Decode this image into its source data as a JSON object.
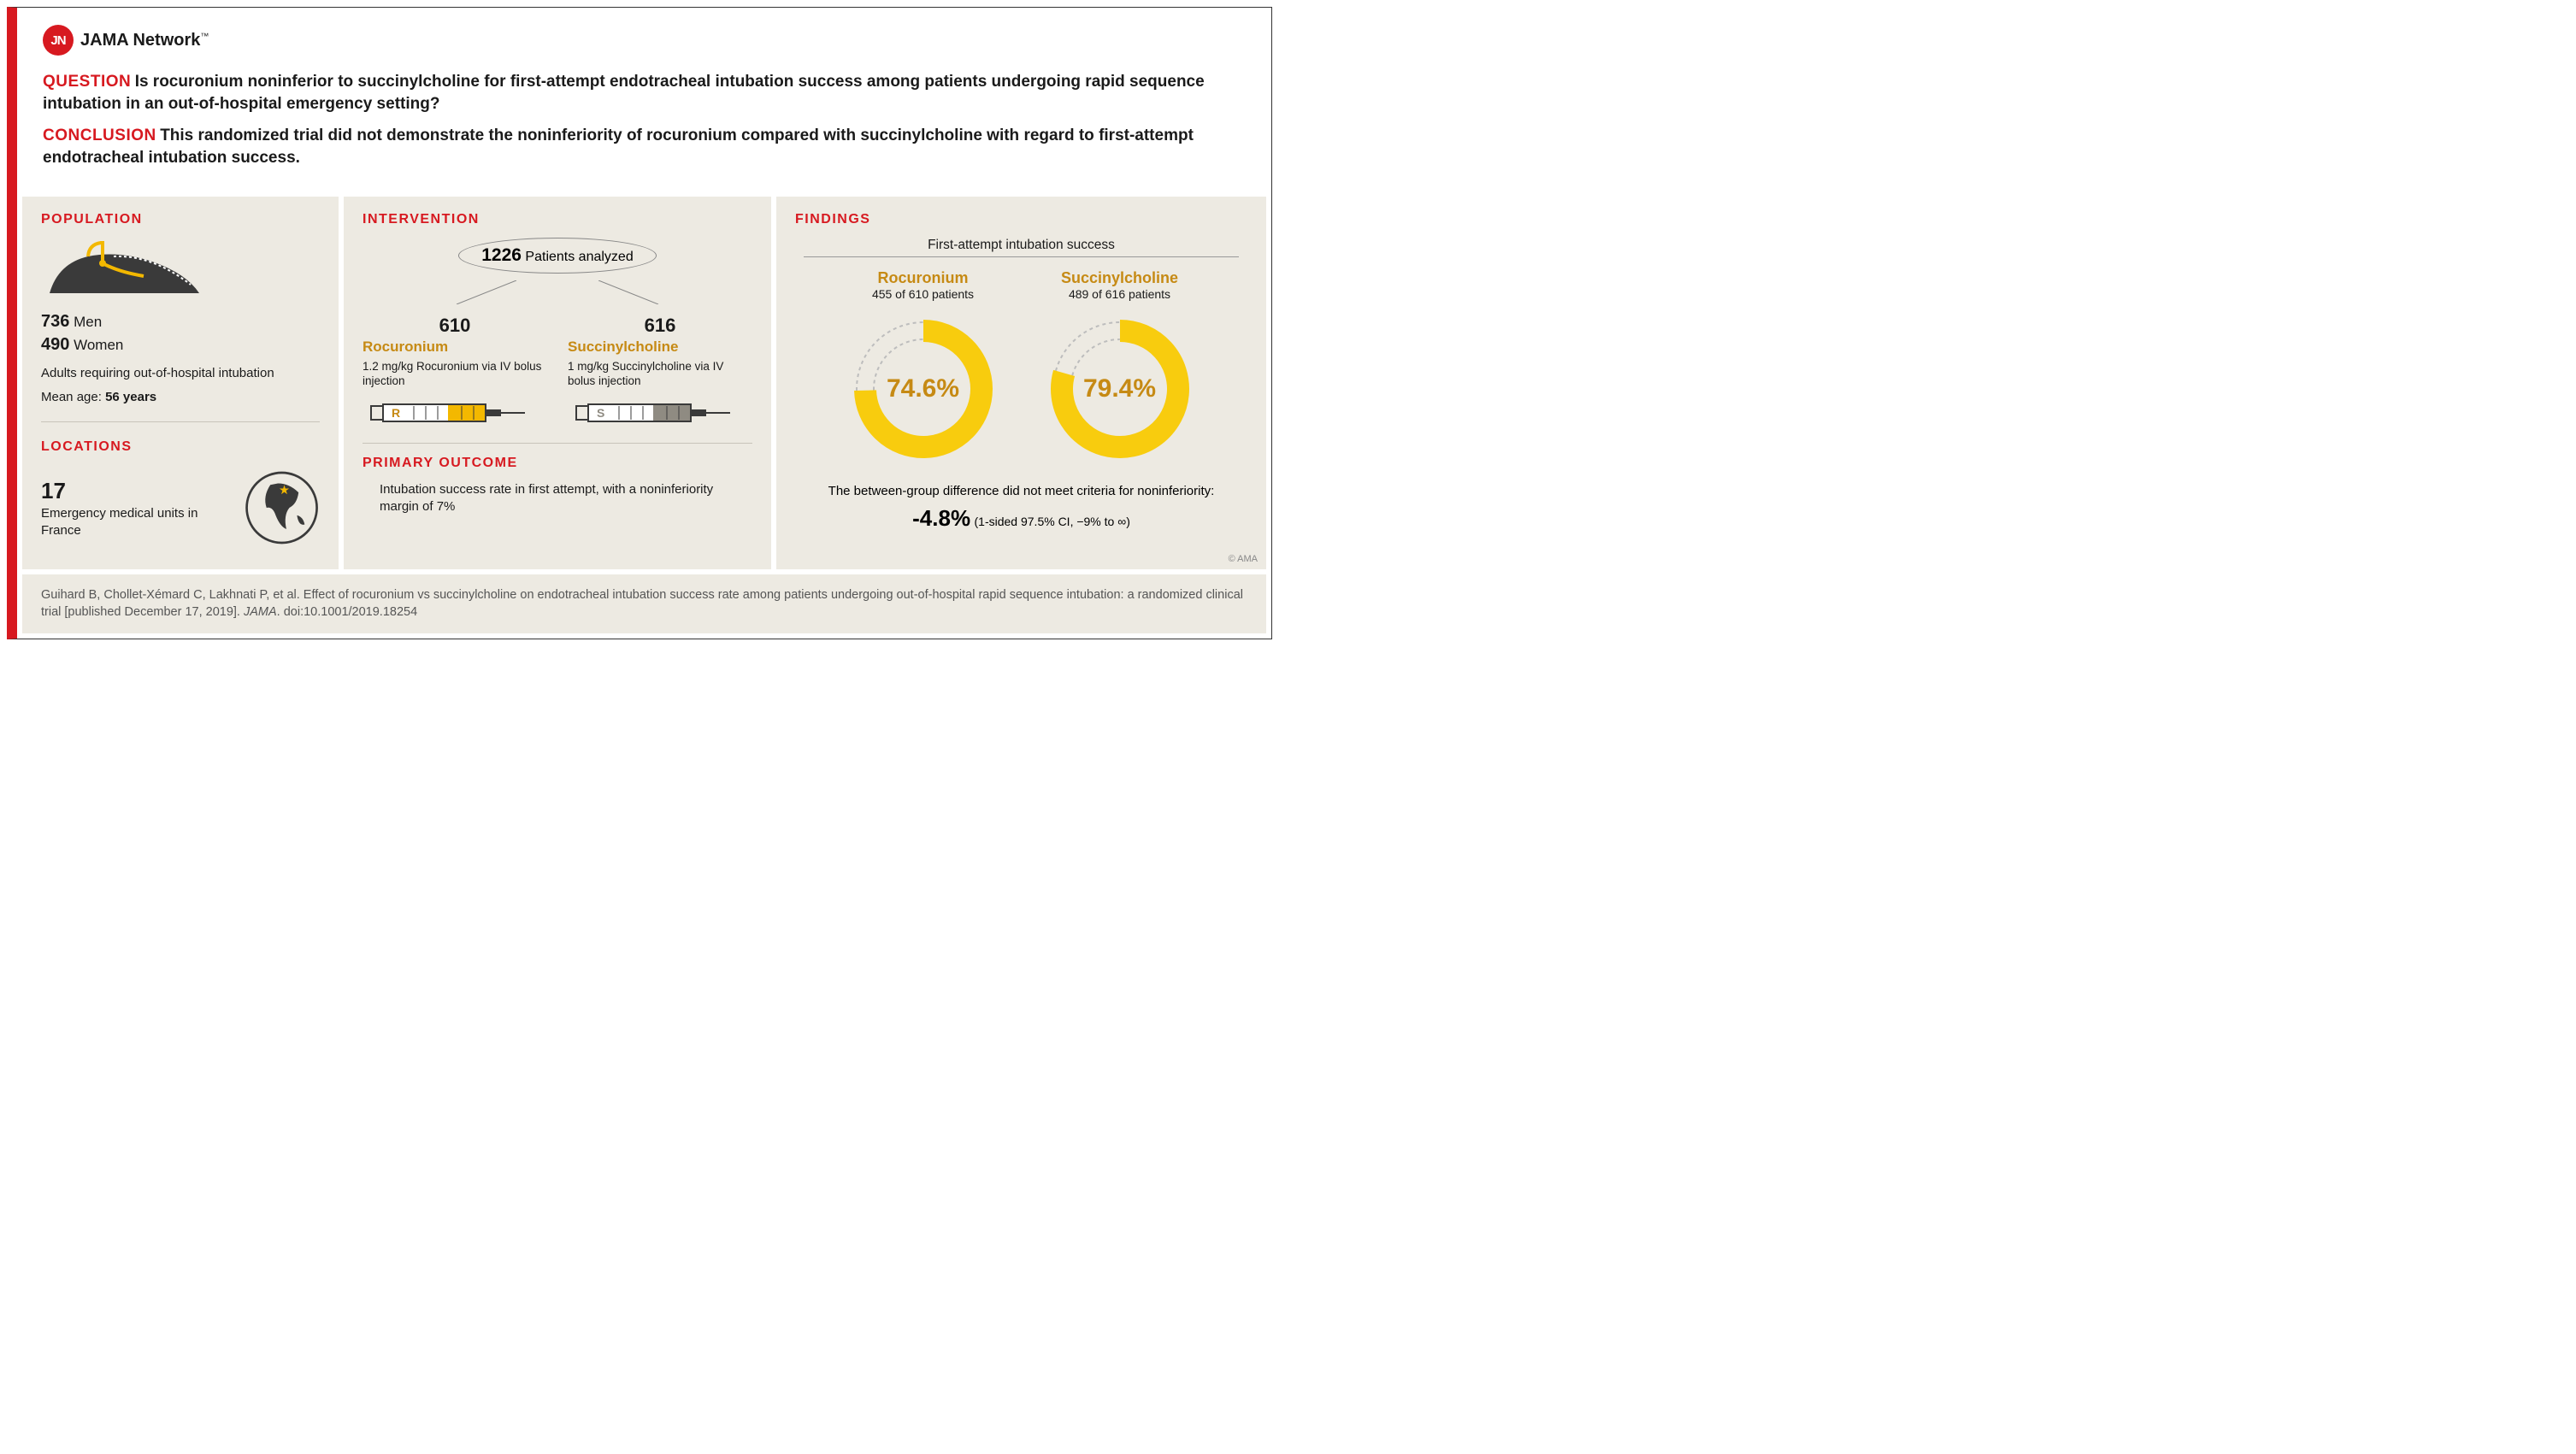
{
  "brand": {
    "initials": "JN",
    "name": "JAMA Network",
    "tm": "™"
  },
  "question": {
    "label": "QUESTION",
    "text": "Is rocuronium noninferior to succinylcholine for first-attempt endotracheal intubation success among patients undergoing rapid sequence intubation in an out-of-hospital emergency setting?"
  },
  "conclusion": {
    "label": "CONCLUSION",
    "text": "This randomized trial did not demonstrate the noninferiority of rocuronium compared with succinylcholine with regard to first-attempt endotracheal intubation success."
  },
  "population": {
    "title": "POPULATION",
    "men_n": "736",
    "men_label": "Men",
    "women_n": "490",
    "women_label": "Women",
    "desc": "Adults requiring out-of-hospital intubation",
    "age_label": "Mean age:",
    "age_value": "56 years",
    "icon_colors": {
      "body": "#3a3a3a",
      "tube": "#f3b800"
    }
  },
  "locations": {
    "title": "LOCATIONS",
    "n": "17",
    "text": "Emergency medical units in France",
    "globe_color": "#3a3a3a",
    "star_color": "#f3b800"
  },
  "intervention": {
    "title": "INTERVENTION",
    "total_n": "1226",
    "total_label": "Patients analyzed",
    "arms": [
      {
        "n": "610",
        "name": "Rocuronium",
        "dose": "1.2 mg/kg Rocuronium via IV bolus injection",
        "letter": "R",
        "fill": "#f3b800"
      },
      {
        "n": "616",
        "name": "Succinylcholine",
        "dose": "1 mg/kg Succinylcholine via IV bolus injection",
        "letter": "S",
        "fill": "#8f8b82"
      }
    ]
  },
  "primary_outcome": {
    "title": "PRIMARY OUTCOME",
    "text": "Intubation success rate in first attempt, with a noninferiority margin of 7%"
  },
  "findings": {
    "title": "FINDINGS",
    "subtitle": "First-attempt intubation success",
    "groups": [
      {
        "name": "Rocuronium",
        "sub": "455 of 610 patients",
        "pct": 74.6,
        "pct_label": "74.6%"
      },
      {
        "name": "Succinylcholine",
        "sub": "489 of 616 patients",
        "pct": 79.4,
        "pct_label": "79.4%"
      }
    ],
    "donut": {
      "color": "#f8cc0e",
      "track": "#bdbdbd",
      "thickness": 26,
      "radius": 78,
      "inner_gap": 12
    },
    "note": "The between-group difference did not meet criteria for noninferiority:",
    "diff": "-4.8%",
    "ci": "(1-sided 97.5% CI, −9% to ∞)"
  },
  "copyright": "© AMA",
  "citation": {
    "text1": "Guihard B, Chollet-Xémard C, Lakhnati P, et al. Effect of rocuronium vs succinylcholine on endotracheal intubation success rate among patients undergoing out-of-hospital rapid sequence intubation: a randomized clinical trial [published December 17, 2019]. ",
    "journal": "JAMA",
    "text2": ". doi:10.1001/2019.18254"
  },
  "colors": {
    "accent": "#d71920",
    "gold": "#c68a14",
    "panel_bg": "#edeae2"
  }
}
